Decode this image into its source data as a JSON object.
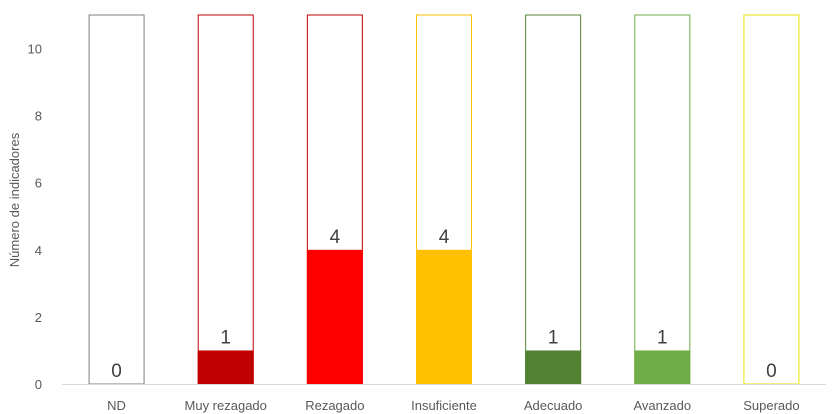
{
  "chart_data": {
    "type": "bar",
    "ylabel": "Número de indicadores",
    "xlabel": "",
    "ylim": [
      0,
      11
    ],
    "yticks": [
      0,
      2,
      4,
      6,
      8,
      10
    ],
    "categories": [
      "ND",
      "Muy rezagado",
      "Rezagado",
      "Insuficiente",
      "Adecuado",
      "Avanzado",
      "Superado"
    ],
    "values": [
      0,
      1,
      4,
      4,
      1,
      1,
      0
    ],
    "capacity": 11,
    "colors": [
      "#a6a6a6",
      "#c00000",
      "#ff0000",
      "#ffc000",
      "#548235",
      "#70ad47",
      "#ffff00"
    ],
    "outline_colors": [
      "#7f7f7f",
      "#c00000",
      "#c00000",
      "#ffc000",
      "#548235",
      "#70ad47",
      "#e6e600"
    ],
    "grid": false
  }
}
